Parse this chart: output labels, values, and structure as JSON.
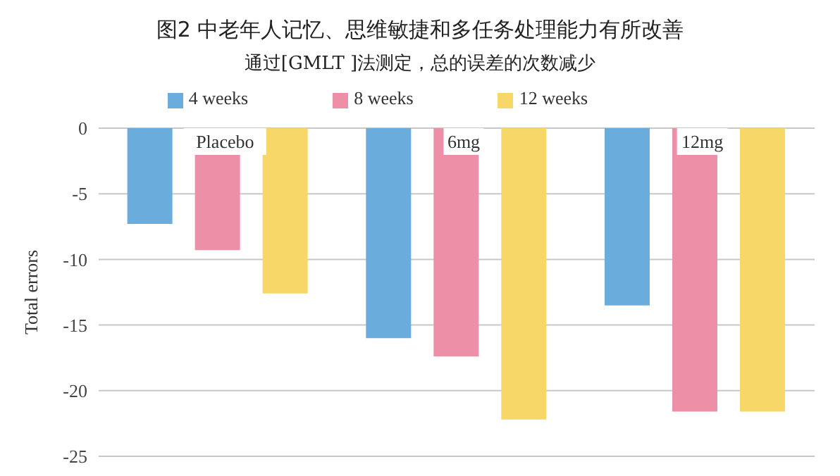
{
  "chart_data": {
    "type": "bar",
    "title": "图2  中老年人记忆、思维敏捷和多任务处理能力有所改善",
    "subtitle": "通过[GMLT ]法测定，总的误差的次数减少",
    "ylabel": "Total errors",
    "categories": [
      "Placebo",
      "6mg",
      "12mg"
    ],
    "series": [
      {
        "name": "4 weeks",
        "color": "#6aaddc",
        "values": [
          -7.3,
          -16.0,
          -13.5
        ]
      },
      {
        "name": "8 weeks",
        "color": "#ee8fa8",
        "values": [
          -9.3,
          -17.4,
          -21.6
        ]
      },
      {
        "name": "12 weeks",
        "color": "#f6d767",
        "values": [
          -12.6,
          -22.2,
          -21.6
        ]
      }
    ],
    "ylim": [
      -25,
      0
    ],
    "yticks": [
      0,
      -5,
      -10,
      -15,
      -20,
      -25
    ],
    "grid": "y",
    "legend": "top"
  }
}
